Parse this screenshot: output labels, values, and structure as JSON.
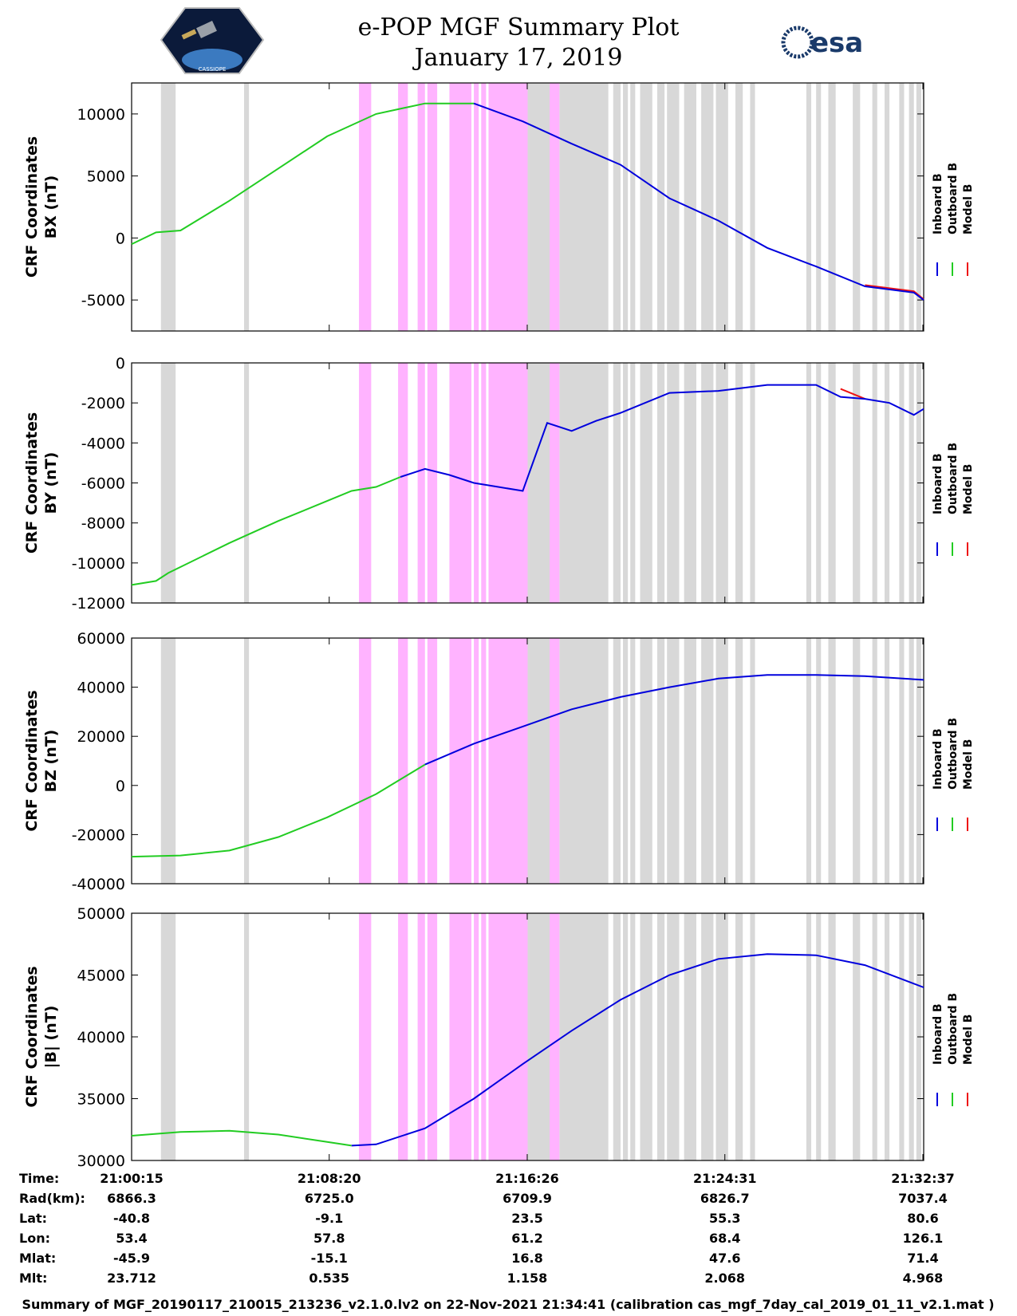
{
  "header": {
    "title_line1": "e-POP MGF Summary Plot",
    "title_line2": "January 17, 2019",
    "left_logo_text": "CASSIOPE",
    "right_logo_text": "esa"
  },
  "colors": {
    "inboard": "#0000dd",
    "outboard": "#22cc22",
    "model": "#ee1111",
    "gray_band": "#d8d8d8",
    "pink_band": "#ffb3ff"
  },
  "chart_data": [
    {
      "type": "line",
      "id": "bx",
      "ylabel_line1": "CRF Coordinates",
      "ylabel_line2": "BX (nT)",
      "ylim": [
        -7500,
        12500
      ],
      "yticks": [
        -5000,
        0,
        5000,
        10000
      ],
      "ytick_labels": [
        "-5000",
        "0",
        "5000",
        "10000"
      ],
      "legend": [
        "Inboard B",
        "Outboard B",
        "Model B"
      ],
      "x_minutes": [
        0,
        1,
        2,
        4,
        6,
        8,
        10,
        12,
        14,
        16,
        18,
        20,
        22,
        24,
        26,
        28,
        30,
        32,
        32.4
      ],
      "inboard": [
        null,
        null,
        null,
        null,
        null,
        null,
        null,
        null,
        10850,
        9400,
        7600,
        5900,
        3200,
        1400,
        -800,
        -2300,
        -3900,
        -4400,
        -5000
      ],
      "outboard": [
        -500,
        450,
        600,
        3000,
        5600,
        8200,
        10000,
        10850,
        10850,
        null,
        null,
        null,
        null,
        null,
        null,
        null,
        null,
        null,
        null
      ],
      "model": [
        null,
        null,
        null,
        null,
        null,
        null,
        null,
        null,
        null,
        null,
        null,
        null,
        null,
        null,
        null,
        null,
        -3800,
        -4300,
        -4950
      ]
    },
    {
      "type": "line",
      "id": "by",
      "ylabel_line1": "CRF Coordinates",
      "ylabel_line2": "BY (nT)",
      "ylim": [
        -12000,
        0
      ],
      "yticks": [
        -12000,
        -10000,
        -8000,
        -6000,
        -4000,
        -2000,
        0
      ],
      "ytick_labels": [
        "-12000",
        "-10000",
        "-8000",
        "-6000",
        "-4000",
        "-2000",
        "0"
      ],
      "legend": [
        "Inboard B",
        "Outboard B",
        "Model B"
      ],
      "x_minutes": [
        0,
        1,
        1.5,
        2,
        4,
        6,
        8,
        9,
        10,
        11,
        12,
        13,
        14,
        15,
        16,
        17,
        18,
        19,
        20,
        22,
        24,
        26,
        28,
        29,
        30,
        31,
        32,
        32.4
      ],
      "inboard": [
        null,
        null,
        null,
        null,
        null,
        null,
        null,
        null,
        null,
        -5700,
        -5300,
        -5600,
        -6000,
        -6200,
        -6400,
        -3000,
        -3400,
        -2900,
        -2500,
        -1500,
        -1400,
        -1100,
        -1100,
        -1700,
        -1800,
        -2000,
        -2600,
        -2300
      ],
      "outboard": [
        -11100,
        -10900,
        -10500,
        -10200,
        -9000,
        -7900,
        -6900,
        -6400,
        -6200,
        -5700,
        null,
        null,
        null,
        null,
        null,
        null,
        null,
        null,
        null,
        null,
        null,
        null,
        null,
        null,
        null,
        null,
        null,
        null
      ],
      "model": [
        null,
        null,
        null,
        null,
        null,
        null,
        null,
        null,
        null,
        null,
        null,
        null,
        null,
        null,
        null,
        null,
        null,
        null,
        null,
        null,
        null,
        null,
        null,
        -1300,
        -1800,
        null,
        null,
        null
      ]
    },
    {
      "type": "line",
      "id": "bz",
      "ylabel_line1": "CRF Coordinates",
      "ylabel_line2": "BZ (nT)",
      "ylim": [
        -40000,
        60000
      ],
      "yticks": [
        -40000,
        -20000,
        0,
        20000,
        40000,
        60000
      ],
      "ytick_labels": [
        "-40000",
        "-20000",
        "0",
        "20000",
        "40000",
        "60000"
      ],
      "legend": [
        "Inboard B",
        "Outboard B",
        "Model B"
      ],
      "x_minutes": [
        0,
        2,
        4,
        6,
        8,
        10,
        11,
        12,
        14,
        16,
        18,
        20,
        22,
        24,
        26,
        28,
        30,
        32.4
      ],
      "inboard": [
        null,
        null,
        null,
        null,
        null,
        null,
        null,
        8500,
        17000,
        24000,
        31000,
        36000,
        40000,
        43500,
        45000,
        45000,
        44500,
        43000
      ],
      "outboard": [
        -29000,
        -28500,
        -26500,
        -21000,
        -13000,
        -3500,
        2500,
        8500,
        null,
        null,
        null,
        null,
        null,
        null,
        null,
        null,
        null,
        null
      ]
    },
    {
      "type": "line",
      "id": "bmag",
      "ylabel_line1": "CRF Coordinates",
      "ylabel_line2": "|B| (nT)",
      "ylim": [
        30000,
        50000
      ],
      "yticks": [
        30000,
        35000,
        40000,
        45000,
        50000
      ],
      "ytick_labels": [
        "30000",
        "35000",
        "40000",
        "45000",
        "50000"
      ],
      "legend": [
        "Inboard B",
        "Outboard B",
        "Model B"
      ],
      "x_minutes": [
        0,
        2,
        4,
        6,
        8,
        9,
        10,
        12,
        14,
        16,
        18,
        20,
        22,
        24,
        26,
        28,
        30,
        32.4
      ],
      "inboard": [
        null,
        null,
        null,
        null,
        null,
        31200,
        31300,
        32600,
        35000,
        37800,
        40500,
        43000,
        45000,
        46300,
        46700,
        46600,
        45800,
        44000
      ],
      "outboard": [
        32000,
        32300,
        32400,
        32100,
        31500,
        31200,
        null,
        null,
        null,
        null,
        null,
        null,
        null,
        null,
        null,
        null,
        null,
        null
      ]
    }
  ],
  "x_axis": {
    "xlim_minutes": [
      0,
      32.4
    ],
    "ticks_minutes": [
      0,
      8.083,
      16.183,
      24.267,
      32.367
    ]
  },
  "bands": {
    "gray_minutes": [
      [
        1.2,
        1.8
      ],
      [
        4.6,
        4.8
      ],
      [
        16.2,
        17.3
      ],
      [
        17.5,
        19.5
      ],
      [
        19.7,
        20.0
      ],
      [
        20.1,
        20.3
      ],
      [
        20.4,
        20.6
      ],
      [
        20.8,
        21.3
      ],
      [
        21.5,
        21.8
      ],
      [
        21.9,
        22.4
      ],
      [
        22.6,
        23.1
      ],
      [
        23.3,
        23.8
      ],
      [
        23.9,
        24.4
      ],
      [
        24.7,
        25.0
      ],
      [
        25.3,
        25.5
      ],
      [
        27.6,
        27.8
      ],
      [
        28.0,
        28.2
      ],
      [
        28.5,
        28.8
      ],
      [
        29.5,
        29.8
      ],
      [
        30.3,
        30.5
      ],
      [
        30.8,
        31.0
      ],
      [
        31.4,
        31.6
      ],
      [
        31.8,
        32.0
      ],
      [
        32.1,
        32.3
      ]
    ],
    "pink_minutes": [
      [
        9.3,
        9.8
      ],
      [
        10.9,
        11.3
      ],
      [
        11.7,
        12.0
      ],
      [
        12.1,
        12.5
      ],
      [
        13.0,
        13.9
      ],
      [
        14.0,
        14.2
      ],
      [
        14.3,
        14.5
      ],
      [
        14.6,
        16.2
      ],
      [
        17.1,
        17.5
      ]
    ]
  },
  "table": {
    "row_labels": [
      "Time:",
      "Rad(km):",
      "Lat:",
      "Lon:",
      "Mlat:",
      "Mlt:"
    ],
    "columns": [
      [
        "21:00:15",
        "6866.3",
        "-40.8",
        "53.4",
        "-45.9",
        "23.712"
      ],
      [
        "21:08:20",
        "6725.0",
        "-9.1",
        "57.8",
        "-15.1",
        "0.535"
      ],
      [
        "21:16:26",
        "6709.9",
        "23.5",
        "61.2",
        "16.8",
        "1.158"
      ],
      [
        "21:24:31",
        "6826.7",
        "55.3",
        "68.4",
        "47.6",
        "2.068"
      ],
      [
        "21:32:37",
        "7037.4",
        "80.6",
        "126.1",
        "71.4",
        "4.968"
      ]
    ]
  },
  "footer": "Summary of MGF_20190117_210015_213236_v2.1.0.lv2 on 22-Nov-2021 21:34:41 (calibration cas_mgf_7day_cal_2019_01_11_v2.1.mat )"
}
